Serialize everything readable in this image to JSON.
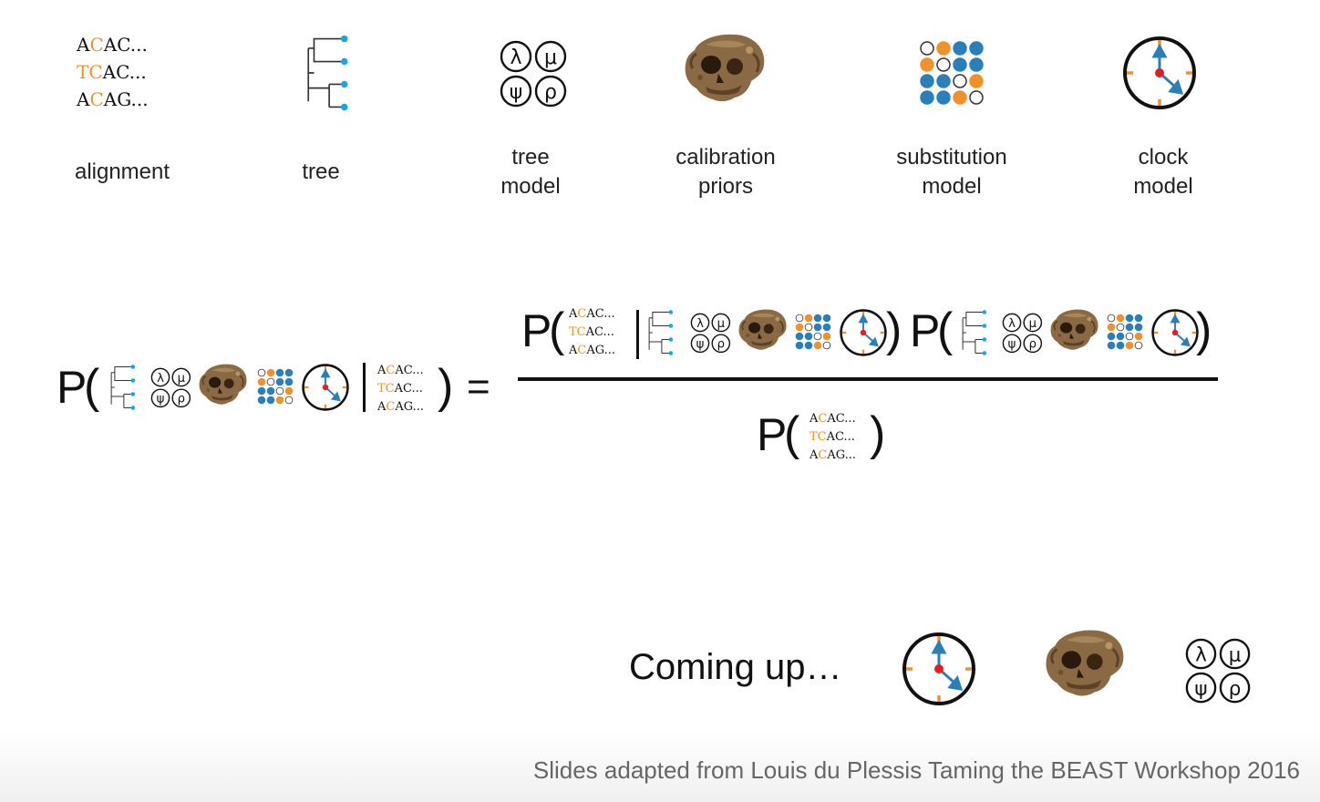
{
  "alignment": {
    "lines": [
      "ACAC...",
      "TCAC...",
      "ACAG..."
    ]
  },
  "legend": {
    "alignment_label": "alignment",
    "tree_label": "tree",
    "tree_model_label_1": "tree",
    "tree_model_label_2": "model",
    "calibration_label_1": "calibration",
    "calibration_label_2": "priors",
    "substitution_label_1": "substitution",
    "substitution_label_2": "model",
    "clock_label_1": "clock",
    "clock_label_2": "model"
  },
  "symbols": {
    "lambda": "λ",
    "mu": "μ",
    "psi": "ψ",
    "rho": "ρ"
  },
  "equation": {
    "P": "P",
    "open": "(",
    "close": ")",
    "bar": "|",
    "equals": "="
  },
  "coming_up": "Coming up…",
  "footer": "Slides adapted from Louis du Plessis Taming the BEAST Workshop 2016",
  "colors": {
    "orange": "#f0922c",
    "blue": "#2a7fba",
    "cyan": "#1aa5e0",
    "red": "#e02020",
    "skull": "#8a6a45"
  },
  "icons": [
    "tree-icon",
    "tree-model-icon",
    "skull-icon",
    "substitution-matrix-icon",
    "clock-icon"
  ]
}
